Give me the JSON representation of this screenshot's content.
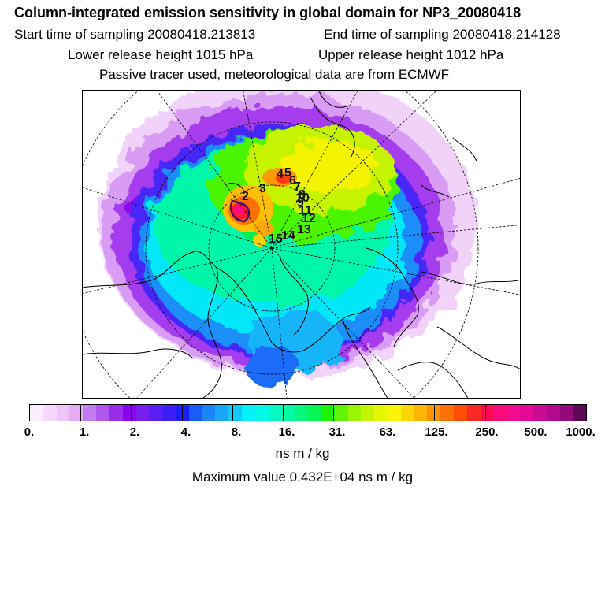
{
  "title": "Column-integrated emission sensitivity in global domain for NP3_20080418",
  "start_time": "Start time of sampling 20080418.213813",
  "end_time": "End time of sampling 20080418.214128",
  "lower_release": "Lower release height 1015 hPa",
  "upper_release": "Upper release height 1012 hPa",
  "tracer_info": "Passive tracer used, meteorological data are from ECMWF",
  "map": {
    "track_labels": [
      "2",
      "3",
      "4",
      "5",
      "6",
      "7",
      "8",
      "9",
      "10",
      "11",
      "12",
      "13",
      "14",
      "15"
    ],
    "projection": "polar stereographic"
  },
  "colorbar": {
    "ticks": [
      "0.",
      "1.",
      "2.",
      "4.",
      "8.",
      "16.",
      "31.",
      "63.",
      "125.",
      "250.",
      "500.",
      "1000."
    ],
    "colors": [
      "#fbeefe",
      "#f5d8fb",
      "#efc5f8",
      "#e8acf6",
      "#c07cf0",
      "#b058ee",
      "#9a2cee",
      "#8a05ee",
      "#7a1ef0",
      "#5c1ef4",
      "#3c1ef8",
      "#1c1efa",
      "#1a5cf8",
      "#1a84f8",
      "#1aa6f8",
      "#14c8f8",
      "#06f0f8",
      "#06f8e6",
      "#06f8c4",
      "#06f8a2",
      "#06f67c",
      "#06f454",
      "#20f406",
      "#62f406",
      "#9af406",
      "#c4f406",
      "#e4f806",
      "#fcf406",
      "#fcd606",
      "#fcb406",
      "#fc9206",
      "#fc7006",
      "#fc4e06",
      "#fc2a26",
      "#fc0a56",
      "#fc0a7c",
      "#f40a8e",
      "#e20a96",
      "#cc0a96",
      "#b20a8e",
      "#920a7c",
      "#5c0a56"
    ],
    "units": "ns m / kg"
  },
  "max_value": "Maximum value  0.432E+04 ns m / kg"
}
